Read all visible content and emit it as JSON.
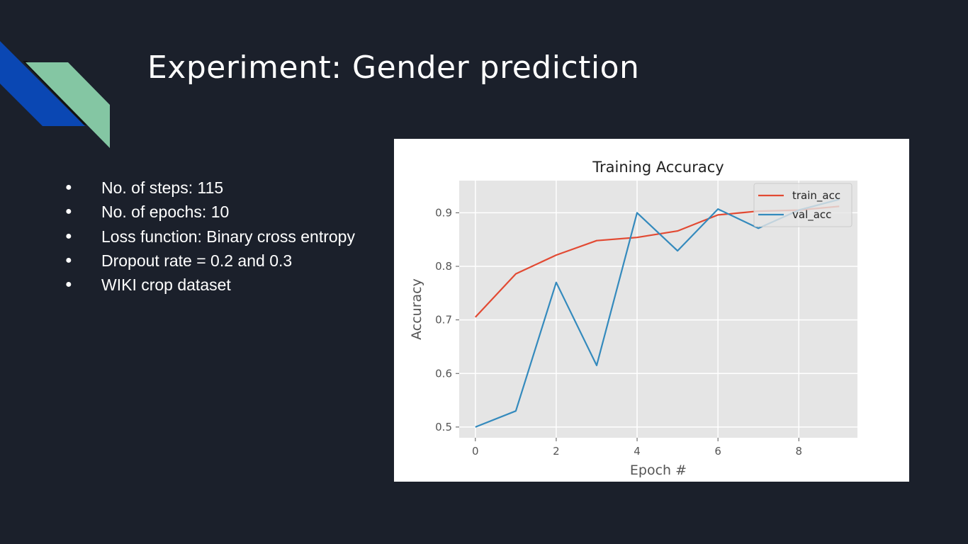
{
  "slide": {
    "title": "Experiment: Gender prediction",
    "bullet_symbol": "●",
    "bullets": [
      "No. of steps: 115",
      "No. of epochs: 10",
      "Loss function: Binary cross entropy",
      "Dropout rate = 0.2 and 0.3",
      "WIKI crop dataset"
    ]
  },
  "colors": {
    "background": "#1b202b",
    "deco_blue": "#0a47b3",
    "deco_green": "#84c6a3",
    "plot_bg": "#e5e5e5",
    "train_acc": "#e24a33",
    "val_acc": "#348abd"
  },
  "chart_data": {
    "type": "line",
    "title": "Training Accuracy",
    "xlabel": "Epoch #",
    "ylabel": "Accuracy",
    "x": [
      0,
      1,
      2,
      3,
      4,
      5,
      6,
      7,
      8,
      9
    ],
    "xticks": [
      "0",
      "2",
      "4",
      "6",
      "8"
    ],
    "yticks": [
      "0.5",
      "0.6",
      "0.7",
      "0.8",
      "0.9"
    ],
    "xlim": [
      -0.4,
      9.45
    ],
    "ylim": [
      0.48,
      0.96
    ],
    "grid": true,
    "legend_position": "top-right",
    "series": [
      {
        "name": "train_acc",
        "color": "#e24a33",
        "values": [
          0.705,
          0.786,
          0.821,
          0.848,
          0.854,
          0.866,
          0.896,
          0.903,
          0.905,
          0.912
        ]
      },
      {
        "name": "val_acc",
        "color": "#348abd",
        "values": [
          0.5,
          0.53,
          0.77,
          0.615,
          0.9,
          0.829,
          0.907,
          0.871,
          0.905,
          0.925
        ]
      }
    ]
  }
}
